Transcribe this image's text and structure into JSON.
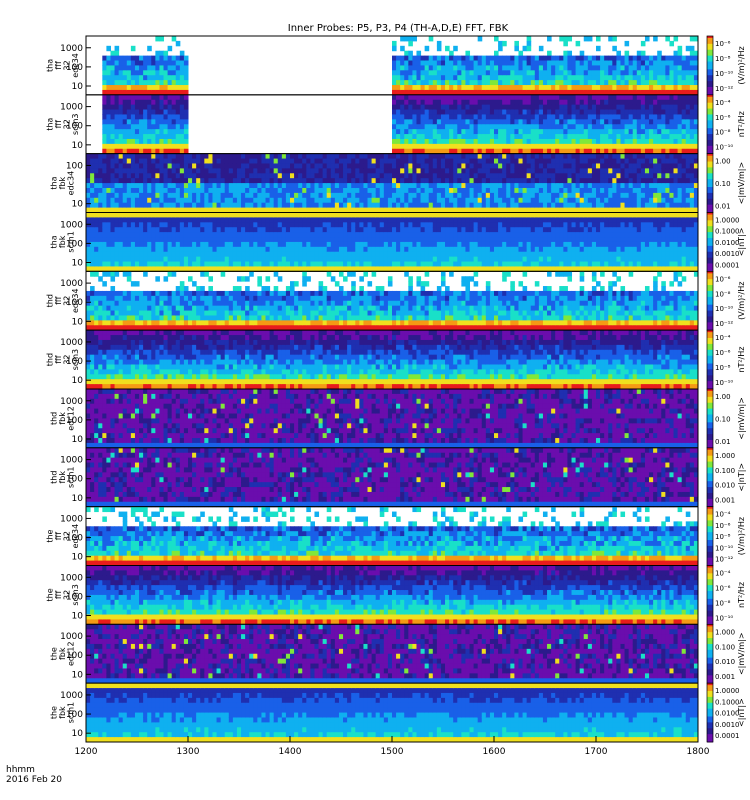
{
  "chart_data": {
    "type": "heatmap",
    "title": "Inner Probes: P5, P3, P4 (TH-A,D,E) FFT, FBK",
    "x_ticks": [
      "1200",
      "1300",
      "1400",
      "1500",
      "1600",
      "1700",
      "1800"
    ],
    "xlim": [
      1200,
      1800
    ],
    "x_label_line1": "hhmm",
    "x_label_line2": "2016 Feb 20",
    "y_scale": "log",
    "palette": [
      "#6a0dad",
      "#2c1a8c",
      "#1f2fb0",
      "#1960e8",
      "#0fb0f0",
      "#19e0c8",
      "#7fe83a",
      "#f0e01e",
      "#f59a14",
      "#e81c1c"
    ],
    "panels": [
      {
        "id": "tha-fff32-edc34",
        "ylabel": [
          "tha",
          "fff",
          "32",
          "edc34"
        ],
        "yticks": [
          "1000",
          "100",
          "10"
        ],
        "cbar_label": "(V/m)²/Hz",
        "cbar_ticks": [
          "10⁻⁶",
          "10⁻⁸",
          "10⁻¹⁰",
          "10⁻¹²"
        ],
        "gaps": [
          [
            1200,
            1215
          ],
          [
            1300,
            1500
          ]
        ],
        "mode": "bursty",
        "seed": 1
      },
      {
        "id": "tha-fff32-scm3",
        "ylabel": [
          "tha",
          "fff",
          "32",
          "scm3"
        ],
        "yticks": [
          "1000",
          "100",
          "10"
        ],
        "cbar_label": "nT²/Hz",
        "cbar_ticks": [
          "10⁻⁴",
          "10⁻⁶",
          "10⁻⁸",
          "10⁻¹⁰"
        ],
        "gaps": [
          [
            1200,
            1215
          ],
          [
            1300,
            1500
          ]
        ],
        "mode": "banded",
        "seed": 2
      },
      {
        "id": "tha-fbk-edc34",
        "ylabel": [
          "tha",
          "fbk",
          "edc34"
        ],
        "yticks": [
          "100",
          "10"
        ],
        "cbar_label": "<|mV/m|>",
        "cbar_ticks": [
          "1.00",
          "0.10",
          "0.01"
        ],
        "gaps": [],
        "mode": "blocky",
        "seed": 3
      },
      {
        "id": "tha-fbk-scm1",
        "ylabel": [
          "tha",
          "fbk",
          "scm1"
        ],
        "yticks": [
          "1000",
          "100",
          "10"
        ],
        "cbar_label": "<|nT|>",
        "cbar_ticks": [
          "1.0000",
          "0.1000",
          "0.0100",
          "0.0010",
          "0.0001"
        ],
        "gaps": [],
        "mode": "smooth",
        "seed": 4
      },
      {
        "id": "thd-fff32-edc34",
        "ylabel": [
          "thd",
          "fff",
          "32",
          "edc34"
        ],
        "yticks": [
          "1000",
          "100",
          "10"
        ],
        "cbar_label": "(V/m)²/Hz",
        "cbar_ticks": [
          "10⁻⁶",
          "10⁻⁸",
          "10⁻¹⁰",
          "10⁻¹²"
        ],
        "gaps": [],
        "mode": "bursty",
        "seed": 5
      },
      {
        "id": "thd-fff32-scm3",
        "ylabel": [
          "thd",
          "fff",
          "32",
          "scm3"
        ],
        "yticks": [
          "1000",
          "100",
          "10"
        ],
        "cbar_label": "nT²/Hz",
        "cbar_ticks": [
          "10⁻⁴",
          "10⁻⁶",
          "10⁻⁸",
          "10⁻¹⁰"
        ],
        "gaps": [],
        "mode": "banded",
        "seed": 6
      },
      {
        "id": "thd-fbk-edc12",
        "ylabel": [
          "thd",
          "fbk",
          "edc12"
        ],
        "yticks": [
          "1000",
          "100",
          "10"
        ],
        "cbar_label": "<|mV/m|>",
        "cbar_ticks": [
          "1.00",
          "0.10",
          "0.01"
        ],
        "gaps": [],
        "mode": "dark",
        "seed": 7
      },
      {
        "id": "thd-fbk-scm1",
        "ylabel": [
          "thd",
          "fbk",
          "scm1"
        ],
        "yticks": [
          "1000",
          "100",
          "10"
        ],
        "cbar_label": "<|nT|>",
        "cbar_ticks": [
          "1.000",
          "0.100",
          "0.010",
          "0.001"
        ],
        "gaps": [],
        "mode": "dark",
        "seed": 8
      },
      {
        "id": "the-fff32-edc34",
        "ylabel": [
          "the",
          "fff",
          "32",
          "edc34"
        ],
        "yticks": [
          "1000",
          "100",
          "10"
        ],
        "cbar_label": "(V/m)²/Hz",
        "cbar_ticks": [
          "10⁻⁴",
          "10⁻⁶",
          "10⁻⁸",
          "10⁻¹⁰",
          "10⁻¹²"
        ],
        "gaps": [],
        "mode": "bursty",
        "seed": 9
      },
      {
        "id": "the-fff32-scm3",
        "ylabel": [
          "the",
          "fff",
          "32",
          "scm3"
        ],
        "yticks": [
          "1000",
          "100",
          "10"
        ],
        "cbar_label": "nT²/Hz",
        "cbar_ticks": [
          "10⁻⁴",
          "10⁻⁶",
          "10⁻⁸",
          "10⁻¹⁰"
        ],
        "gaps": [],
        "mode": "banded",
        "seed": 10
      },
      {
        "id": "the-fbk-edc12",
        "ylabel": [
          "the",
          "fbk",
          "edc12"
        ],
        "yticks": [
          "1000",
          "100",
          "10"
        ],
        "cbar_label": "<|mV/m|>",
        "cbar_ticks": [
          "1.000",
          "0.100",
          "0.010",
          "0.001"
        ],
        "gaps": [],
        "mode": "dark",
        "seed": 11
      },
      {
        "id": "the-fbk-scm1",
        "ylabel": [
          "the",
          "fbk",
          "scm1"
        ],
        "yticks": [
          "1000",
          "100",
          "10"
        ],
        "cbar_label": "<|nT|>",
        "cbar_ticks": [
          "1.0000",
          "0.1000",
          "0.0100",
          "0.0010",
          "0.0001"
        ],
        "gaps": [],
        "mode": "smooth",
        "seed": 12
      }
    ]
  }
}
